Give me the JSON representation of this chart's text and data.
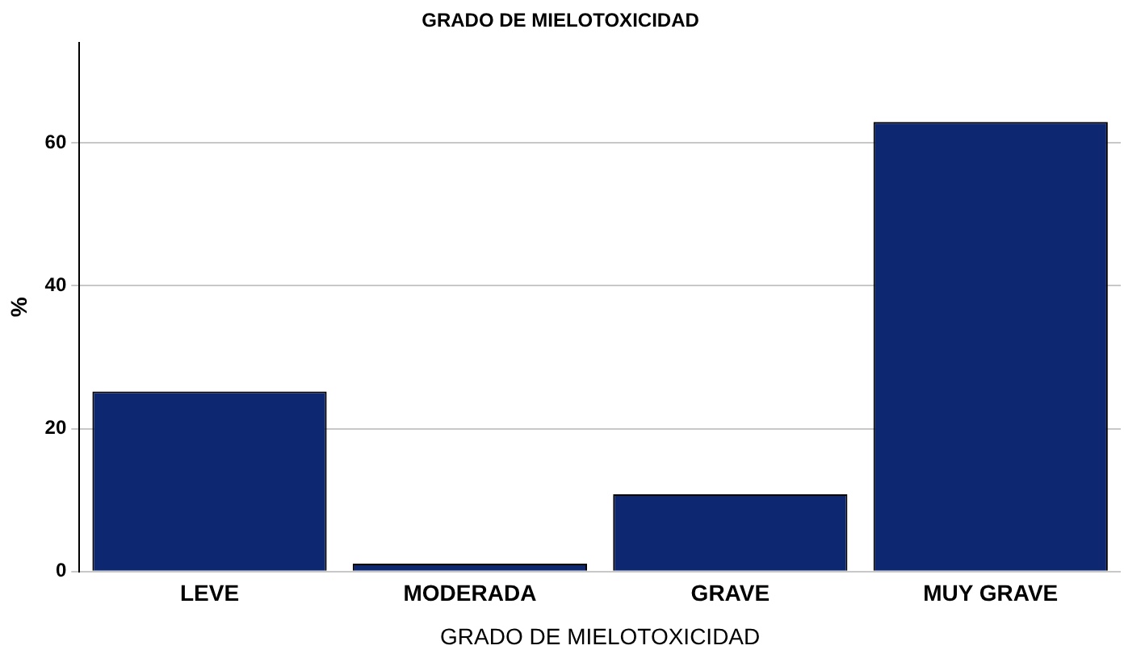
{
  "chart_data": {
    "type": "bar",
    "title": "GRADO DE MIELOTOXICIDAD",
    "xlabel": "GRADO DE MIELOTOXICIDAD",
    "ylabel": "%",
    "categories": [
      "LEVE",
      "MODERADA",
      "GRAVE",
      "MUY GRAVE"
    ],
    "values": [
      25.2,
      1.1,
      10.8,
      62.9
    ],
    "color": "#0d2870",
    "ylim": [
      0,
      74
    ],
    "yticks": [
      0,
      20,
      40,
      60
    ],
    "grid": "y"
  }
}
